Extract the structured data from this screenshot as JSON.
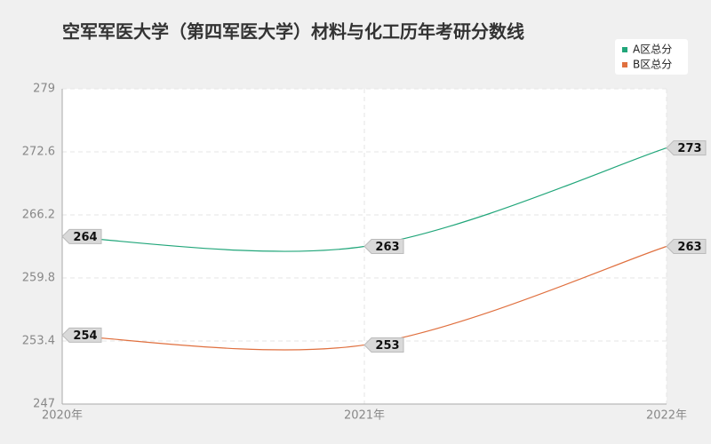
{
  "chart_data": {
    "type": "line",
    "title": "空军军医大学（第四军医大学）材料与化工历年考研分数线",
    "categories": [
      "2020年",
      "2021年",
      "2022年"
    ],
    "series": [
      {
        "name": "A区总分",
        "color": "#21a67a",
        "values": [
          264,
          263,
          273
        ]
      },
      {
        "name": "B区总分",
        "color": "#e0703f",
        "values": [
          254,
          253,
          263
        ]
      }
    ],
    "ylim": [
      247,
      279
    ],
    "yticks": [
      247,
      253.4,
      259.8,
      266.2,
      272.6,
      279
    ],
    "grid": true,
    "legend": "top-right"
  }
}
